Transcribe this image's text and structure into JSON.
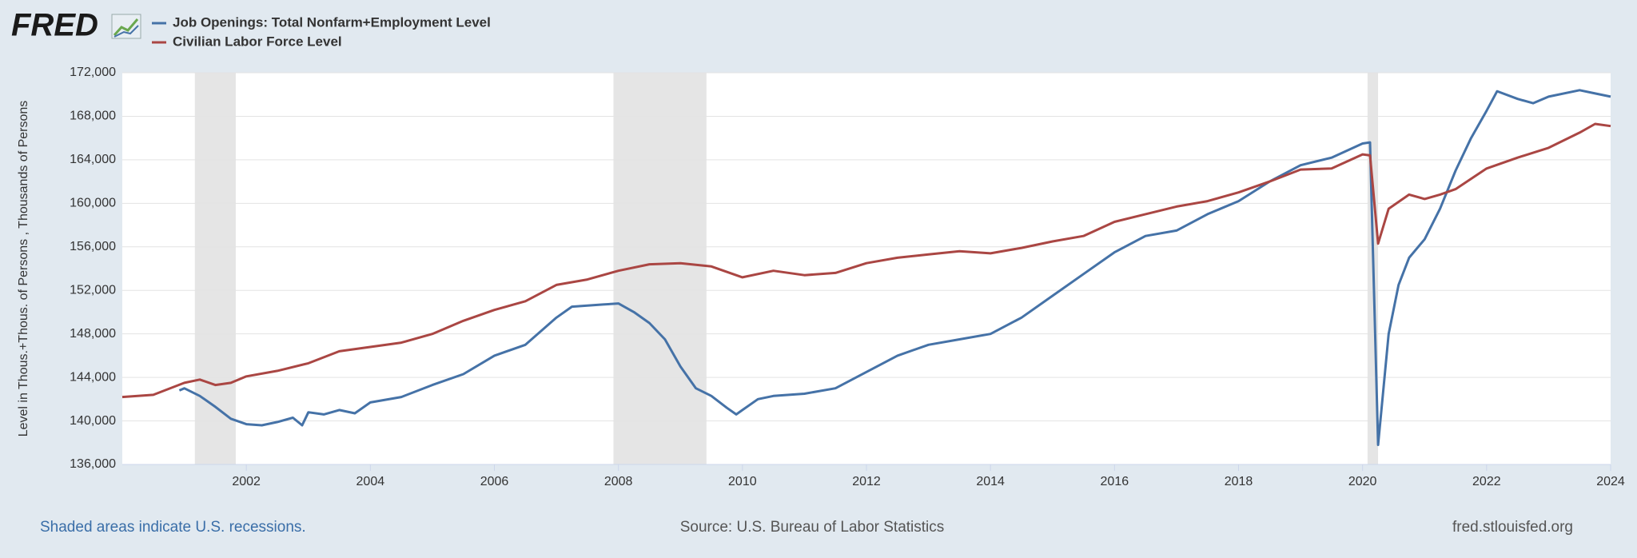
{
  "logo": "FRED",
  "chart_data": {
    "type": "line",
    "y_axis_label": "Level in Thous.+Thous. of Persons , Thousands of Persons",
    "note": "Shaded areas indicate U.S. recessions.",
    "source": "Source: U.S. Bureau of Labor Statistics",
    "site": "fred.stlouisfed.org",
    "xlim": [
      2000,
      2024
    ],
    "xticks": [
      2002,
      2004,
      2006,
      2008,
      2010,
      2012,
      2014,
      2016,
      2018,
      2020,
      2022,
      2024
    ],
    "ylim": [
      136000,
      172000
    ],
    "yticks": [
      {
        "value": 136000,
        "label": "136,000"
      },
      {
        "value": 140000,
        "label": "140,000"
      },
      {
        "value": 144000,
        "label": "144,000"
      },
      {
        "value": 148000,
        "label": "148,000"
      },
      {
        "value": 152000,
        "label": "152,000"
      },
      {
        "value": 156000,
        "label": "156,000"
      },
      {
        "value": 160000,
        "label": "160,000"
      },
      {
        "value": 164000,
        "label": "164,000"
      },
      {
        "value": 168000,
        "label": "168,000"
      },
      {
        "value": 172000,
        "label": "172,000"
      }
    ],
    "grid": true,
    "recessions": [
      [
        2001.17,
        2001.83
      ],
      [
        2007.92,
        2009.42
      ],
      [
        2020.08,
        2020.25
      ]
    ],
    "recession_color": "#e5e5e5",
    "series": [
      {
        "name": "Job Openings: Total Nonfarm+Employment Level",
        "color": "#4572a7",
        "x": [
          2000.92,
          2001.0,
          2001.25,
          2001.5,
          2001.75,
          2002.0,
          2002.25,
          2002.5,
          2002.75,
          2002.9,
          2003.0,
          2003.25,
          2003.5,
          2003.75,
          2004.0,
          2004.5,
          2005.0,
          2005.5,
          2006.0,
          2006.5,
          2007.0,
          2007.25,
          2007.5,
          2007.75,
          2008.0,
          2008.25,
          2008.5,
          2008.75,
          2009.0,
          2009.25,
          2009.5,
          2009.75,
          2009.9,
          2010.0,
          2010.25,
          2010.5,
          2011.0,
          2011.5,
          2012.0,
          2012.5,
          2013.0,
          2013.5,
          2014.0,
          2014.5,
          2015.0,
          2015.5,
          2016.0,
          2016.5,
          2017.0,
          2017.5,
          2018.0,
          2018.5,
          2019.0,
          2019.5,
          2020.0,
          2020.12,
          2020.25,
          2020.42,
          2020.58,
          2020.75,
          2021.0,
          2021.25,
          2021.5,
          2021.75,
          2022.0,
          2022.17,
          2022.5,
          2022.75,
          2023.0,
          2023.5,
          2023.75,
          2024.0
        ],
        "values": [
          142800,
          143000,
          142300,
          141300,
          140200,
          139700,
          139600,
          139900,
          140300,
          139600,
          140800,
          140600,
          141000,
          140700,
          141700,
          142200,
          143300,
          144300,
          146000,
          147000,
          149500,
          150500,
          150600,
          150700,
          150800,
          150000,
          149000,
          147500,
          145000,
          143000,
          142300,
          141200,
          140600,
          141000,
          142000,
          142300,
          142500,
          143000,
          144500,
          146000,
          147000,
          147500,
          148000,
          149500,
          151500,
          153500,
          155500,
          157000,
          157500,
          159000,
          160200,
          162000,
          163500,
          164200,
          165500,
          165600,
          137800,
          148000,
          152500,
          155000,
          156700,
          159500,
          163000,
          166000,
          168500,
          170300,
          169600,
          169200,
          169800,
          170400,
          170100,
          169800
        ]
      },
      {
        "name": "Civilian Labor Force Level",
        "color": "#aa4643",
        "x": [
          2000.0,
          2000.5,
          2001.0,
          2001.25,
          2001.5,
          2001.75,
          2002.0,
          2002.5,
          2003.0,
          2003.5,
          2004.0,
          2004.5,
          2005.0,
          2005.5,
          2006.0,
          2006.5,
          2007.0,
          2007.5,
          2008.0,
          2008.5,
          2009.0,
          2009.5,
          2010.0,
          2010.5,
          2011.0,
          2011.5,
          2012.0,
          2012.5,
          2013.0,
          2013.5,
          2014.0,
          2014.5,
          2015.0,
          2015.5,
          2016.0,
          2016.5,
          2017.0,
          2017.5,
          2018.0,
          2018.5,
          2019.0,
          2019.5,
          2020.0,
          2020.12,
          2020.25,
          2020.42,
          2020.75,
          2021.0,
          2021.25,
          2021.5,
          2022.0,
          2022.5,
          2023.0,
          2023.5,
          2023.75,
          2024.0
        ],
        "values": [
          142200,
          142400,
          143500,
          143800,
          143300,
          143500,
          144100,
          144600,
          145300,
          146400,
          146800,
          147200,
          148000,
          149200,
          150200,
          151000,
          152500,
          153000,
          153800,
          154400,
          154500,
          154200,
          153200,
          153800,
          153400,
          153600,
          154500,
          155000,
          155300,
          155600,
          155400,
          155900,
          156500,
          157000,
          158300,
          159000,
          159700,
          160200,
          161000,
          162000,
          163100,
          163200,
          164500,
          164400,
          156300,
          159500,
          160800,
          160400,
          160800,
          161300,
          163200,
          164200,
          165100,
          166500,
          167300,
          167100
        ]
      }
    ]
  }
}
